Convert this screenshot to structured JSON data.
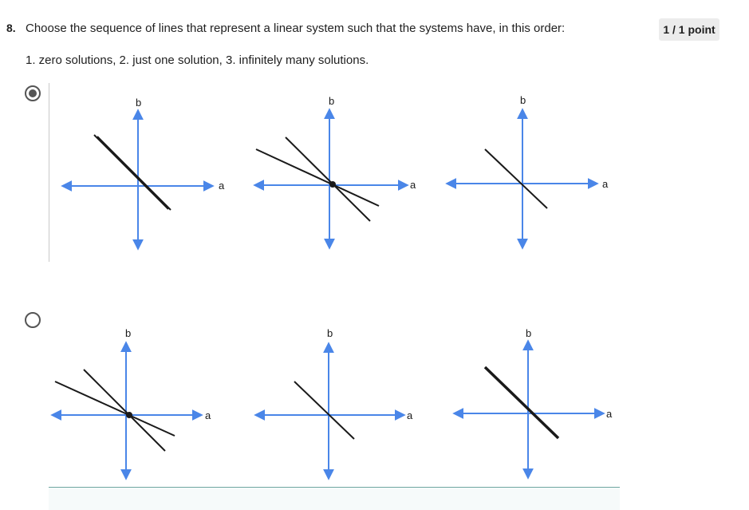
{
  "question": {
    "number": "8.",
    "text": "Choose the sequence of lines that represent a linear system such that the systems have, in this order:",
    "subtext": "1. zero solutions, 2. just one solution, 3. infinitely many solutions.",
    "points": "1 / 1 point"
  },
  "options": [
    {
      "selected": true,
      "graphs": [
        {
          "x_label": "a",
          "y_label": "b",
          "lines": "two parallel lines",
          "solutions": "zero"
        },
        {
          "x_label": "a",
          "y_label": "b",
          "lines": "two intersecting lines",
          "solutions": "one"
        },
        {
          "x_label": "a",
          "y_label": "b",
          "lines": "one line (coincident)",
          "solutions": "infinitely many"
        }
      ]
    },
    {
      "selected": false,
      "graphs": [
        {
          "x_label": "a",
          "y_label": "b",
          "lines": "two intersecting lines",
          "solutions": "one"
        },
        {
          "x_label": "a",
          "y_label": "b",
          "lines": "one line",
          "solutions": "infinitely many"
        },
        {
          "x_label": "a",
          "y_label": "b",
          "lines": "two overlapping lines",
          "solutions": "infinitely many"
        }
      ]
    }
  ],
  "colors": {
    "axis": "#4a86e8",
    "line": "#1a1a1a",
    "radio": "#555555",
    "points_badge": "#ececec"
  }
}
